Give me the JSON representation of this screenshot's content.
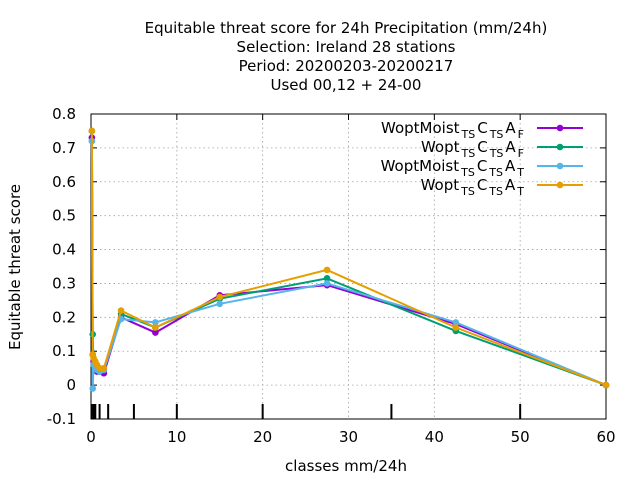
{
  "chart_data": {
    "type": "line",
    "title_lines": [
      "Equitable threat score  for 24h Precipitation (mm/24h)",
      "Selection: Ireland      28 stations",
      "Period: 20200203-20200217",
      "Used  00,12  + 24-00"
    ],
    "xlabel": "classes mm/24h",
    "ylabel": "Equitable threat score",
    "xlim": [
      0,
      60
    ],
    "ylim": [
      -0.1,
      0.8
    ],
    "xticks": [
      0,
      10,
      20,
      30,
      40,
      50,
      60
    ],
    "yticks": [
      -0.1,
      0,
      0.1,
      0.2,
      0.3,
      0.4,
      0.5,
      0.6,
      0.7,
      0.8
    ],
    "ytick_labels": [
      "-0.1",
      "0",
      "0.1",
      "0.2",
      "0.3",
      "0.4",
      "0.5",
      "0.6",
      "0.7",
      "0.8"
    ],
    "grid": true,
    "legend_position": "top-right",
    "class_marks": [
      0.1,
      0.3,
      0.5,
      1,
      2,
      5,
      10,
      20,
      35,
      50
    ],
    "series": [
      {
        "name_main": "WoptMoist",
        "name_parts": [
          [
            "TS",
            "sub"
          ],
          [
            "C",
            "main"
          ],
          [
            "TS",
            "sub"
          ],
          [
            "A",
            "main"
          ],
          [
            "F",
            "sub"
          ]
        ],
        "color": "#9400d3",
        "x": [
          0.1,
          0.2,
          0.3,
          0.5,
          0.7,
          1,
          1.5,
          3.5,
          7.5,
          15,
          27.5,
          42.5,
          60
        ],
        "y": [
          0.73,
          0.09,
          0.07,
          0.06,
          0.04,
          0.04,
          0.035,
          0.2,
          0.155,
          0.265,
          0.295,
          0.18,
          0.0
        ]
      },
      {
        "name_main": "Wopt",
        "name_parts": [
          [
            "TS",
            "sub"
          ],
          [
            "C",
            "main"
          ],
          [
            "TS",
            "sub"
          ],
          [
            "A",
            "main"
          ],
          [
            "F",
            "sub"
          ]
        ],
        "color": "#009e73",
        "x": [
          0.1,
          0.2,
          0.3,
          0.5,
          0.7,
          1,
          1.5,
          3.5,
          7.5,
          15,
          27.5,
          42.5,
          60
        ],
        "y": [
          0.75,
          0.15,
          0.06,
          0.055,
          0.05,
          0.045,
          0.045,
          0.21,
          0.17,
          0.255,
          0.315,
          0.16,
          0.0
        ]
      },
      {
        "name_main": "WoptMoist",
        "name_parts": [
          [
            "TS",
            "sub"
          ],
          [
            "C",
            "main"
          ],
          [
            "TS",
            "sub"
          ],
          [
            "A",
            "main"
          ],
          [
            "T",
            "sub"
          ]
        ],
        "color": "#56b4e9",
        "x": [
          0.1,
          0.2,
          0.3,
          0.5,
          0.7,
          1,
          1.5,
          3.5,
          7.5,
          15,
          27.5,
          42.5,
          60
        ],
        "y": [
          0.72,
          -0.01,
          0.06,
          0.055,
          0.045,
          0.04,
          0.045,
          0.195,
          0.185,
          0.24,
          0.3,
          0.185,
          0.0
        ]
      },
      {
        "name_main": "Wopt",
        "name_parts": [
          [
            "TS",
            "sub"
          ],
          [
            "C",
            "main"
          ],
          [
            "TS",
            "sub"
          ],
          [
            "A",
            "main"
          ],
          [
            "T",
            "sub"
          ]
        ],
        "color": "#e69f00",
        "x": [
          0.1,
          0.2,
          0.3,
          0.5,
          0.7,
          1,
          1.5,
          3.5,
          7.5,
          15,
          27.5,
          42.5,
          60
        ],
        "y": [
          0.75,
          0.09,
          0.08,
          0.07,
          0.06,
          0.05,
          0.05,
          0.22,
          0.17,
          0.26,
          0.34,
          0.17,
          0.0
        ]
      }
    ]
  }
}
